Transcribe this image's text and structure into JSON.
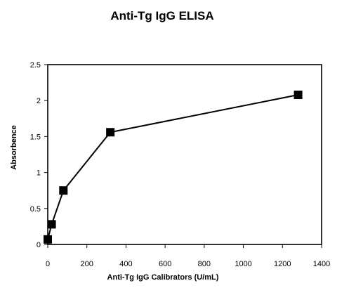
{
  "chart_data": {
    "type": "line",
    "title": "Anti-Tg IgG ELISA",
    "xlabel": "Anti-Tg IgG Calibrators (U/mL)",
    "ylabel": "Absorbence",
    "xlim": [
      0,
      1400
    ],
    "ylim": [
      0,
      2.5
    ],
    "x_ticks": [
      "0",
      "200",
      "400",
      "600",
      "800",
      "1000",
      "1200",
      "1400"
    ],
    "y_ticks": [
      "0",
      "0.5",
      "1",
      "1.5",
      "2",
      "2.5"
    ],
    "series": [
      {
        "marker": "square",
        "color": "#000000",
        "x": [
          0,
          20,
          80,
          320,
          1280
        ],
        "y": [
          0.07,
          0.28,
          0.75,
          1.56,
          2.08
        ]
      }
    ],
    "grid": false,
    "legend": "none"
  }
}
